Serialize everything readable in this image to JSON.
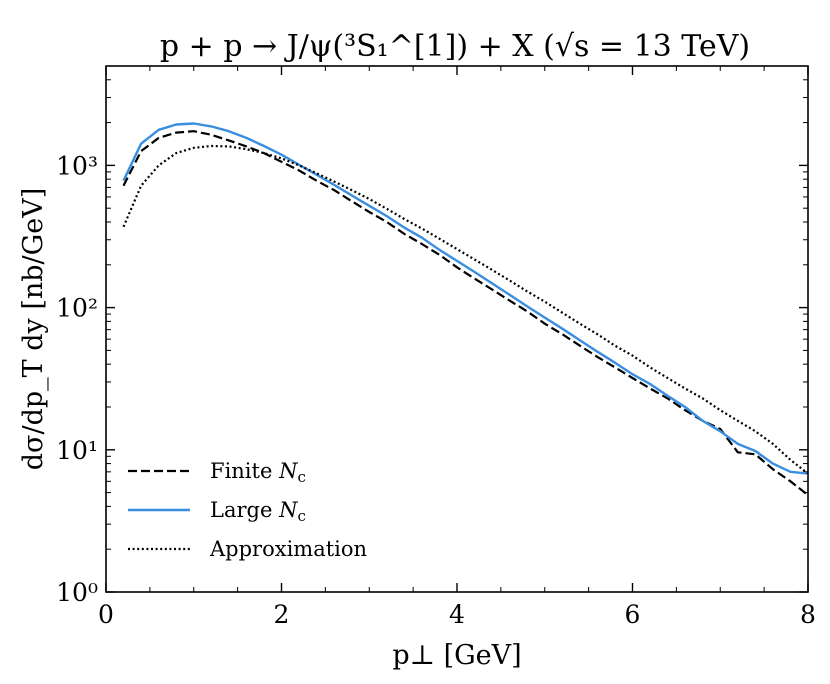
{
  "chart_data": {
    "type": "line",
    "title": "p + p → J/ψ(³S₁^[1]) + X  (√s = 13 TeV)",
    "xlabel": "p⊥ [GeV]",
    "ylabel": "dσ/dp_T dy [nb/GeV]",
    "xscale": "linear",
    "yscale": "log",
    "xlim": [
      0,
      8
    ],
    "ylim": [
      1,
      5000
    ],
    "x_ticks": [
      0,
      2,
      4,
      6,
      8
    ],
    "x_tick_labels": [
      "0",
      "2",
      "4",
      "6",
      "8"
    ],
    "y_ticks": [
      1,
      10,
      100,
      1000
    ],
    "y_tick_labels": [
      "10⁰",
      "10¹",
      "10²",
      "10³"
    ],
    "legend_position": "lower-left",
    "series": [
      {
        "name": "Finite N_c",
        "label_main": "Finite ",
        "label_sym": "N",
        "label_sub": "c",
        "color": "#000000",
        "style": "dashed",
        "x": [
          0.2,
          0.4,
          0.6,
          0.8,
          1.0,
          1.2,
          1.4,
          1.6,
          1.8,
          2.0,
          2.2,
          2.4,
          2.6,
          2.8,
          3.0,
          3.2,
          3.4,
          3.6,
          3.8,
          4.0,
          4.2,
          4.4,
          4.6,
          4.8,
          5.0,
          5.2,
          5.4,
          5.6,
          5.8,
          6.0,
          6.2,
          6.4,
          6.6,
          6.8,
          7.0,
          7.2,
          7.4,
          7.6,
          7.8,
          8.0
        ],
        "values": [
          720,
          1260,
          1560,
          1700,
          1740,
          1640,
          1500,
          1360,
          1220,
          1060,
          920,
          780,
          670,
          560,
          470,
          400,
          330,
          280,
          235,
          192,
          160,
          134,
          112,
          94,
          77,
          65,
          54,
          45,
          38,
          32,
          27,
          23,
          19,
          16,
          14,
          9.6,
          9.3,
          7.3,
          6.0,
          4.8
        ]
      },
      {
        "name": "Large N_c",
        "label_main": "Large ",
        "label_sym": "N",
        "label_sub": "c",
        "color": "#3a8ee0",
        "style": "solid",
        "x": [
          0.2,
          0.4,
          0.6,
          0.8,
          1.0,
          1.2,
          1.4,
          1.6,
          1.8,
          2.0,
          2.2,
          2.4,
          2.6,
          2.8,
          3.0,
          3.2,
          3.4,
          3.6,
          3.8,
          4.0,
          4.2,
          4.4,
          4.6,
          4.8,
          5.0,
          5.2,
          5.4,
          5.6,
          5.8,
          6.0,
          6.2,
          6.4,
          6.6,
          6.8,
          7.0,
          7.2,
          7.4,
          7.6,
          7.8,
          8.0
        ],
        "values": [
          780,
          1420,
          1780,
          1940,
          1970,
          1880,
          1740,
          1560,
          1370,
          1190,
          1010,
          860,
          730,
          615,
          520,
          440,
          365,
          310,
          255,
          213,
          178,
          148,
          123,
          102,
          85,
          71,
          59,
          49,
          41,
          34,
          29,
          24,
          20,
          16,
          13.5,
          11,
          9.8,
          8.0,
          7.0,
          6.8
        ]
      },
      {
        "name": "Approximation",
        "label_main": "Approximation",
        "label_sym": "",
        "label_sub": "",
        "color": "#000000",
        "style": "dotted",
        "x": [
          0.2,
          0.4,
          0.6,
          0.8,
          1.0,
          1.2,
          1.4,
          1.6,
          1.8,
          2.0,
          2.2,
          2.4,
          2.6,
          2.8,
          3.0,
          3.2,
          3.4,
          3.6,
          3.8,
          4.0,
          4.2,
          4.4,
          4.6,
          4.8,
          5.0,
          5.2,
          5.4,
          5.6,
          5.8,
          6.0,
          6.2,
          6.4,
          6.6,
          6.8,
          7.0,
          7.2,
          7.4,
          7.6,
          7.8,
          8.0
        ],
        "values": [
          370,
          720,
          1000,
          1220,
          1330,
          1370,
          1360,
          1300,
          1220,
          1120,
          1000,
          880,
          770,
          670,
          580,
          495,
          420,
          360,
          305,
          258,
          218,
          184,
          155,
          130,
          110,
          92,
          77,
          65,
          54,
          46,
          38,
          32,
          27,
          23,
          19,
          16,
          13.5,
          11,
          8.5,
          6.8
        ]
      }
    ]
  }
}
